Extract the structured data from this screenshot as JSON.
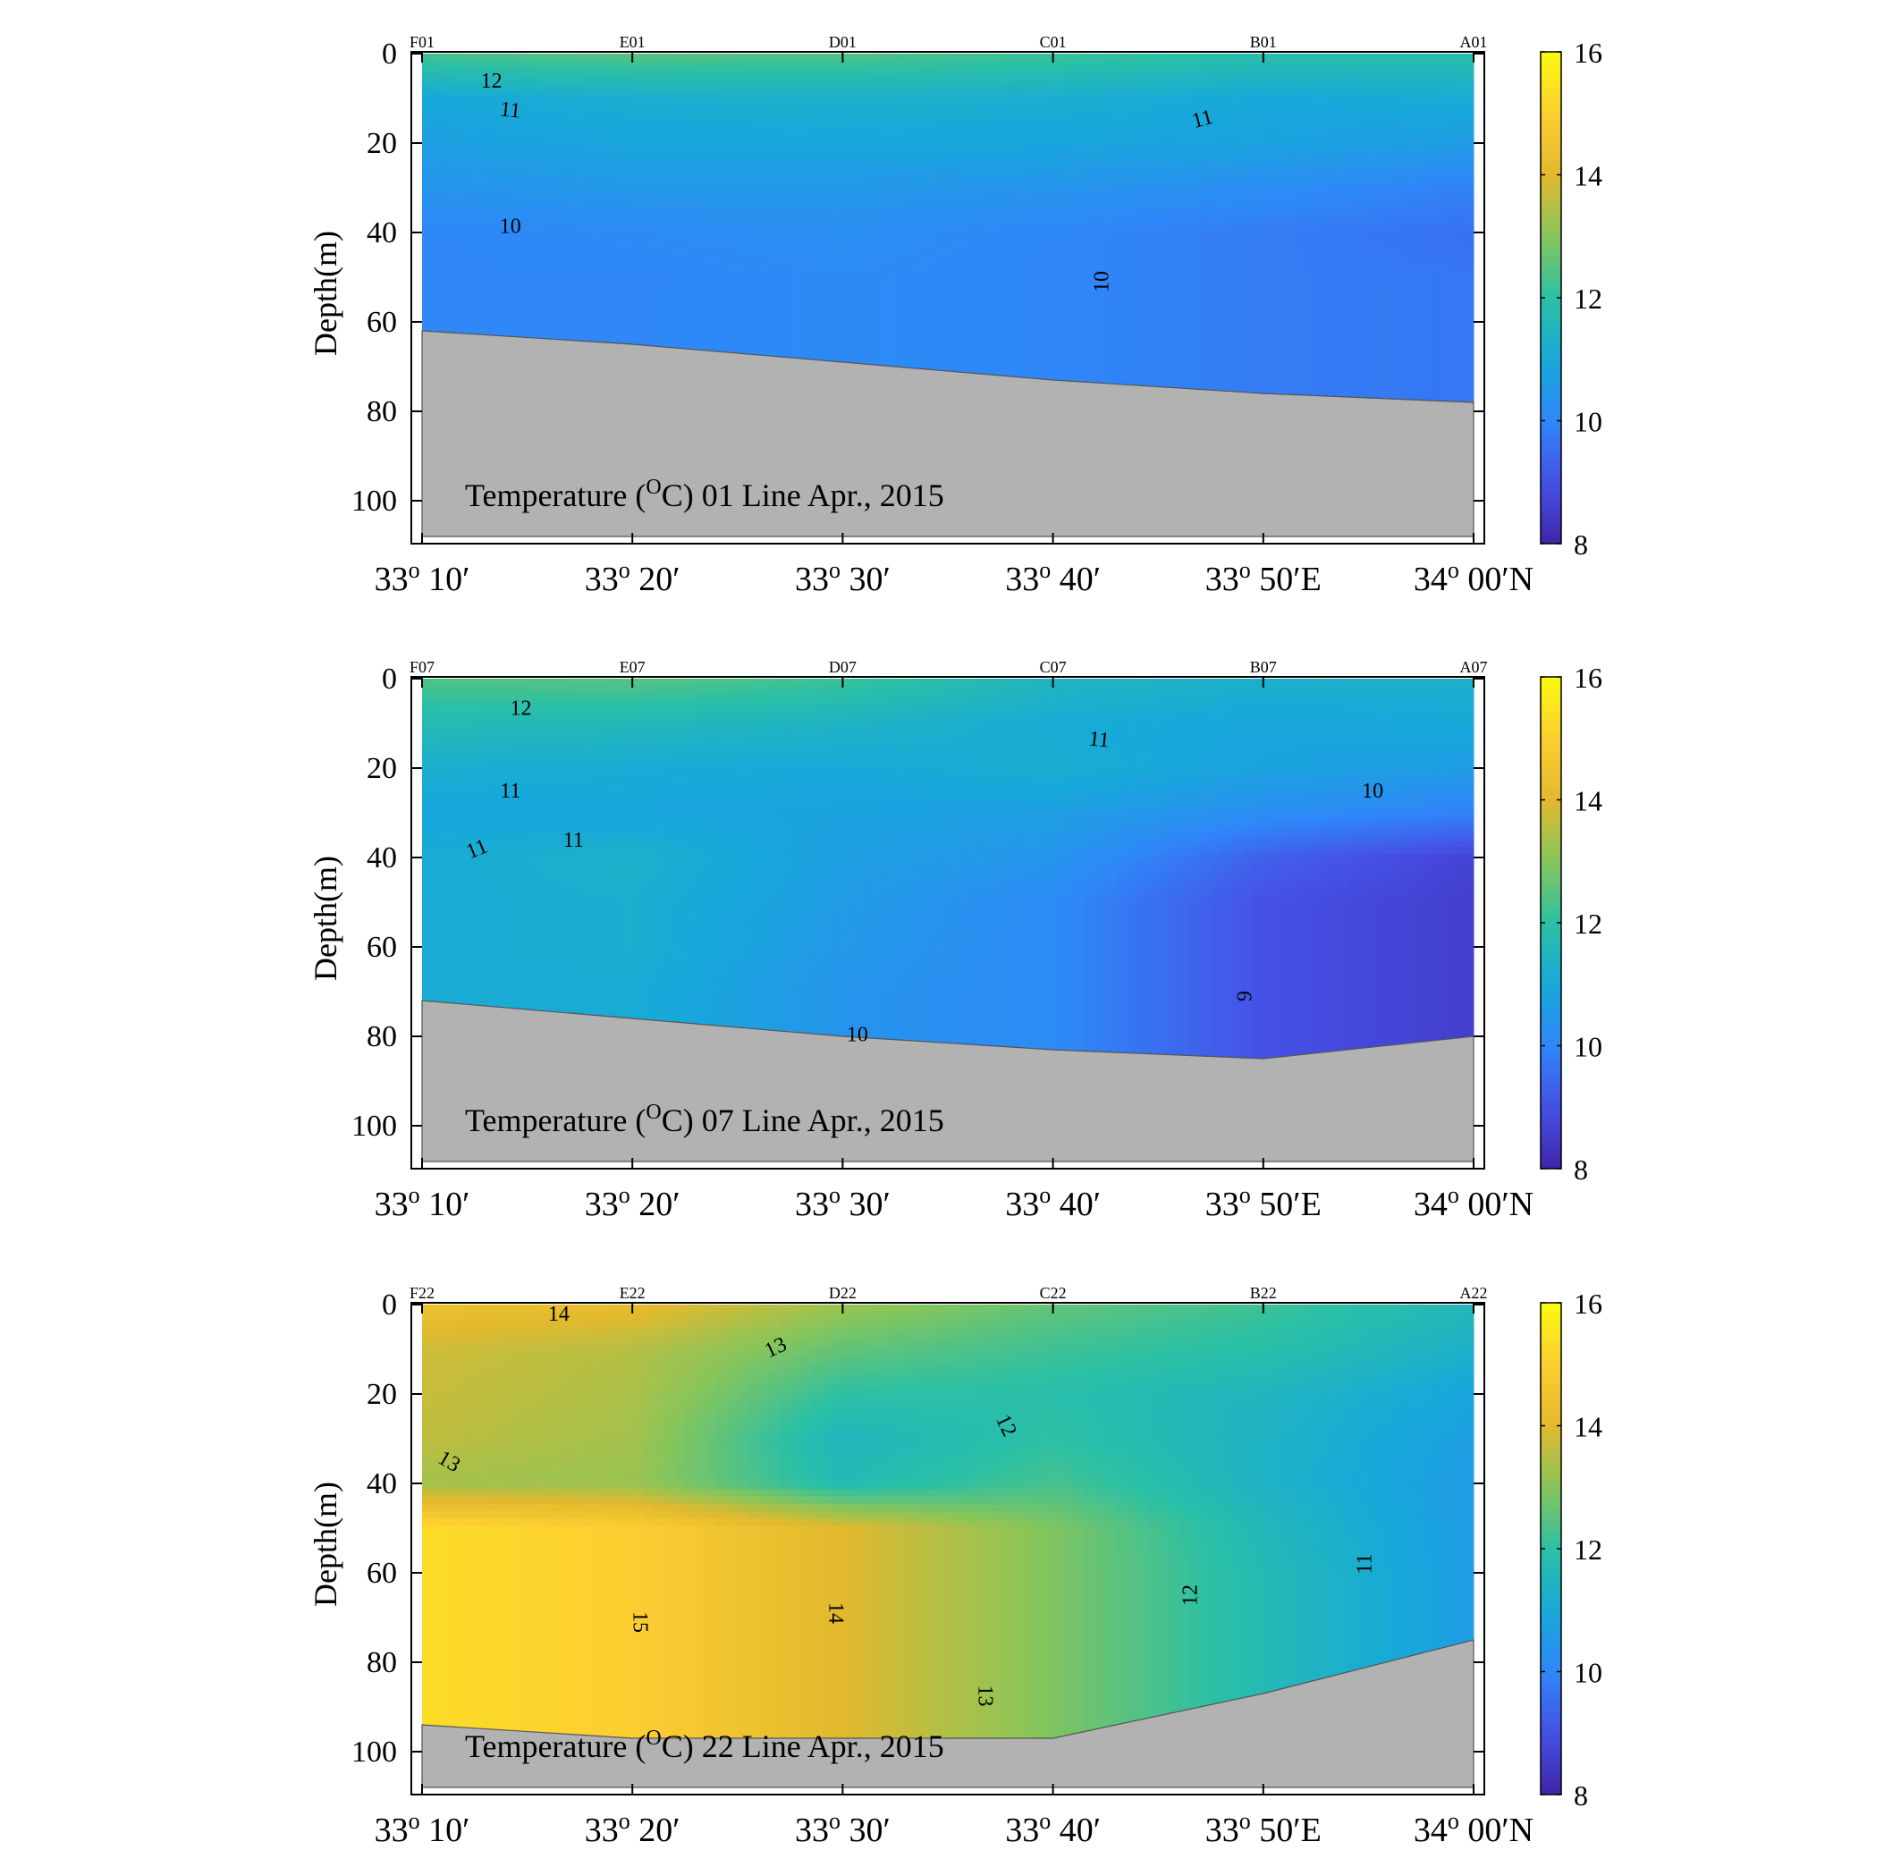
{
  "figure": {
    "y_axis_label": "Depth(m)",
    "x_tick_labels": [
      {
        "deg": "33",
        "min": "10′"
      },
      {
        "deg": "33",
        "min": "20′"
      },
      {
        "deg": "33",
        "min": "30′"
      },
      {
        "deg": "33",
        "min": "40′"
      },
      {
        "deg": "33",
        "min": "50′E"
      },
      {
        "deg": "34",
        "min": "00′N"
      }
    ],
    "colorbar": {
      "ticks": [
        "8",
        "10",
        "12",
        "14",
        "16"
      ],
      "range": [
        8,
        16
      ],
      "colormap": "parula",
      "colors": [
        "#3e26a8",
        "#4650e6",
        "#2f87f8",
        "#17a9d9",
        "#2cc0a4",
        "#88c55a",
        "#e2b92e",
        "#fdce32",
        "#f9fb0e"
      ]
    },
    "bottom_color": "#b2b2b2"
  },
  "chart_data": [
    {
      "type": "heatmap",
      "title": {
        "pre": "Temperature (",
        "sup": "O",
        "post": "C)  01 Line   Apr., 2015"
      },
      "ylabel": "Depth(m)",
      "xlim_arcmin": [
        10,
        60
      ],
      "ylim": [
        110,
        0
      ],
      "y_ticks": [
        0,
        20,
        40,
        60,
        80,
        100
      ],
      "stations": [
        "F01",
        "E01",
        "D01",
        "C01",
        "B01",
        "A01"
      ],
      "station_x_arcmin": [
        10,
        20,
        30,
        40,
        50,
        60
      ],
      "bottom_depth": [
        62,
        65,
        69,
        73,
        76,
        78
      ],
      "depths": [
        0,
        10,
        20,
        30,
        40,
        50,
        60,
        70,
        80
      ],
      "temperature": [
        [
          12.3,
          12.5,
          12.4,
          12.2,
          11.9,
          11.9
        ],
        [
          11.0,
          11.2,
          11.3,
          11.2,
          11.0,
          11.1
        ],
        [
          10.7,
          10.9,
          10.9,
          10.9,
          10.8,
          10.6
        ],
        [
          10.4,
          10.5,
          10.5,
          10.4,
          10.2,
          9.9
        ],
        [
          10.0,
          10.1,
          10.2,
          10.0,
          9.8,
          9.6
        ],
        [
          10.0,
          10.0,
          10.1,
          10.0,
          9.8,
          9.7
        ],
        [
          10.0,
          10.0,
          10.1,
          10.0,
          9.8,
          9.7
        ],
        [
          10.0,
          10.0,
          10.1,
          10.0,
          9.8,
          9.7
        ],
        [
          10.0,
          10.0,
          10.1,
          10.0,
          9.8,
          9.7
        ]
      ],
      "contour_labels": [
        {
          "text": "12",
          "x": 13.3,
          "d": 6,
          "angle": 0
        },
        {
          "text": "11",
          "x": 14.2,
          "d": 12.5,
          "angle": 6
        },
        {
          "text": "11",
          "x": 47.1,
          "d": 14.5,
          "angle": -15
        },
        {
          "text": "10",
          "x": 14.2,
          "d": 38.5,
          "angle": 0
        },
        {
          "text": "10",
          "x": 42.3,
          "d": 51,
          "angle": -90
        }
      ]
    },
    {
      "type": "heatmap",
      "title": {
        "pre": "Temperature (",
        "sup": "O",
        "post": "C)  07 Line   Apr., 2015"
      },
      "ylabel": "Depth(m)",
      "xlim_arcmin": [
        10,
        60
      ],
      "ylim": [
        110,
        0
      ],
      "y_ticks": [
        0,
        20,
        40,
        60,
        80,
        100
      ],
      "stations": [
        "F07",
        "E07",
        "D07",
        "C07",
        "B07",
        "A07"
      ],
      "station_x_arcmin": [
        10,
        20,
        30,
        40,
        50,
        60
      ],
      "bottom_depth": [
        72,
        76,
        80,
        83,
        85,
        80
      ],
      "depths": [
        0,
        10,
        20,
        30,
        40,
        50,
        60,
        70,
        80,
        90
      ],
      "temperature": [
        [
          12.4,
          12.5,
          12.2,
          11.5,
          11.3,
          11.3
        ],
        [
          11.7,
          11.6,
          11.4,
          11.1,
          10.9,
          11.0
        ],
        [
          11.2,
          11.1,
          11.0,
          11.2,
          10.8,
          10.6
        ],
        [
          10.9,
          10.9,
          10.8,
          10.7,
          10.2,
          9.9
        ],
        [
          11.1,
          11.3,
          10.7,
          10.4,
          9.3,
          8.7
        ],
        [
          11.1,
          11.2,
          10.6,
          10.1,
          9.0,
          8.6
        ],
        [
          11.1,
          11.2,
          10.5,
          10.1,
          9.0,
          8.6
        ],
        [
          11.1,
          11.1,
          10.4,
          10.1,
          9.0,
          8.6
        ],
        [
          11.1,
          11.1,
          10.4,
          10.1,
          9.0,
          8.6
        ],
        [
          11.1,
          11.1,
          10.4,
          10.1,
          9.0,
          8.6
        ]
      ],
      "contour_labels": [
        {
          "text": "12",
          "x": 14.7,
          "d": 6.5,
          "angle": 0
        },
        {
          "text": "11",
          "x": 42.2,
          "d": 13.5,
          "angle": 6
        },
        {
          "text": "11",
          "x": 14.2,
          "d": 25,
          "angle": 0
        },
        {
          "text": "10",
          "x": 55.2,
          "d": 25,
          "angle": 0
        },
        {
          "text": "11",
          "x": 12.6,
          "d": 38,
          "angle": -22
        },
        {
          "text": "11",
          "x": 17.2,
          "d": 36,
          "angle": 0
        },
        {
          "text": "9",
          "x": 49.1,
          "d": 71,
          "angle": -90
        },
        {
          "text": "10",
          "x": 30.7,
          "d": 79.5,
          "angle": 0
        }
      ]
    },
    {
      "type": "heatmap",
      "title": {
        "pre": "Temperature (",
        "sup": "O",
        "post": "C)  22 Line   Apr., 2015"
      },
      "ylabel": "Depth(m)",
      "xlim_arcmin": [
        10,
        60
      ],
      "ylim": [
        110,
        0
      ],
      "y_ticks": [
        0,
        20,
        40,
        60,
        80,
        100
      ],
      "stations": [
        "F22",
        "E22",
        "D22",
        "C22",
        "B22",
        "A22"
      ],
      "station_x_arcmin": [
        10,
        20,
        30,
        40,
        50,
        60
      ],
      "bottom_depth": [
        94,
        97,
        97,
        97,
        87,
        75
      ],
      "depths": [
        0,
        10,
        20,
        30,
        40,
        50,
        60,
        70,
        80,
        90,
        100
      ],
      "temperature": [
        [
          14.4,
          14.2,
          13.2,
          12.6,
          12.2,
          11.6
        ],
        [
          13.8,
          13.5,
          12.6,
          12.2,
          11.9,
          11.3
        ],
        [
          13.7,
          13.4,
          12.0,
          11.9,
          11.5,
          10.9
        ],
        [
          13.6,
          13.3,
          11.5,
          12.0,
          11.4,
          10.7
        ],
        [
          13.3,
          13.2,
          11.7,
          12.3,
          11.4,
          10.6
        ],
        [
          15.3,
          15.0,
          14.0,
          12.9,
          11.6,
          10.6
        ],
        [
          15.3,
          15.0,
          14.0,
          12.9,
          11.7,
          10.6
        ],
        [
          15.3,
          15.0,
          14.0,
          12.9,
          11.7,
          10.6
        ],
        [
          15.3,
          15.0,
          14.0,
          12.9,
          11.7,
          10.6
        ],
        [
          15.3,
          15.0,
          14.0,
          12.9,
          11.7,
          10.6
        ],
        [
          15.3,
          15.0,
          14.0,
          12.9,
          11.7,
          10.6
        ]
      ],
      "contour_labels": [
        {
          "text": "14",
          "x": 16.5,
          "d": 2,
          "angle": 0
        },
        {
          "text": "13",
          "x": 26.8,
          "d": 9.5,
          "angle": -25
        },
        {
          "text": "12",
          "x": 37.8,
          "d": 27,
          "angle": 65
        },
        {
          "text": "13",
          "x": 11.3,
          "d": 35,
          "angle": 30
        },
        {
          "text": "15",
          "x": 20.4,
          "d": 71,
          "angle": 90
        },
        {
          "text": "14",
          "x": 29.7,
          "d": 69,
          "angle": 90
        },
        {
          "text": "13",
          "x": 36.8,
          "d": 87.5,
          "angle": 90
        },
        {
          "text": "12",
          "x": 46.5,
          "d": 65,
          "angle": -90
        },
        {
          "text": "11",
          "x": 54.8,
          "d": 58,
          "angle": -90
        }
      ]
    }
  ]
}
